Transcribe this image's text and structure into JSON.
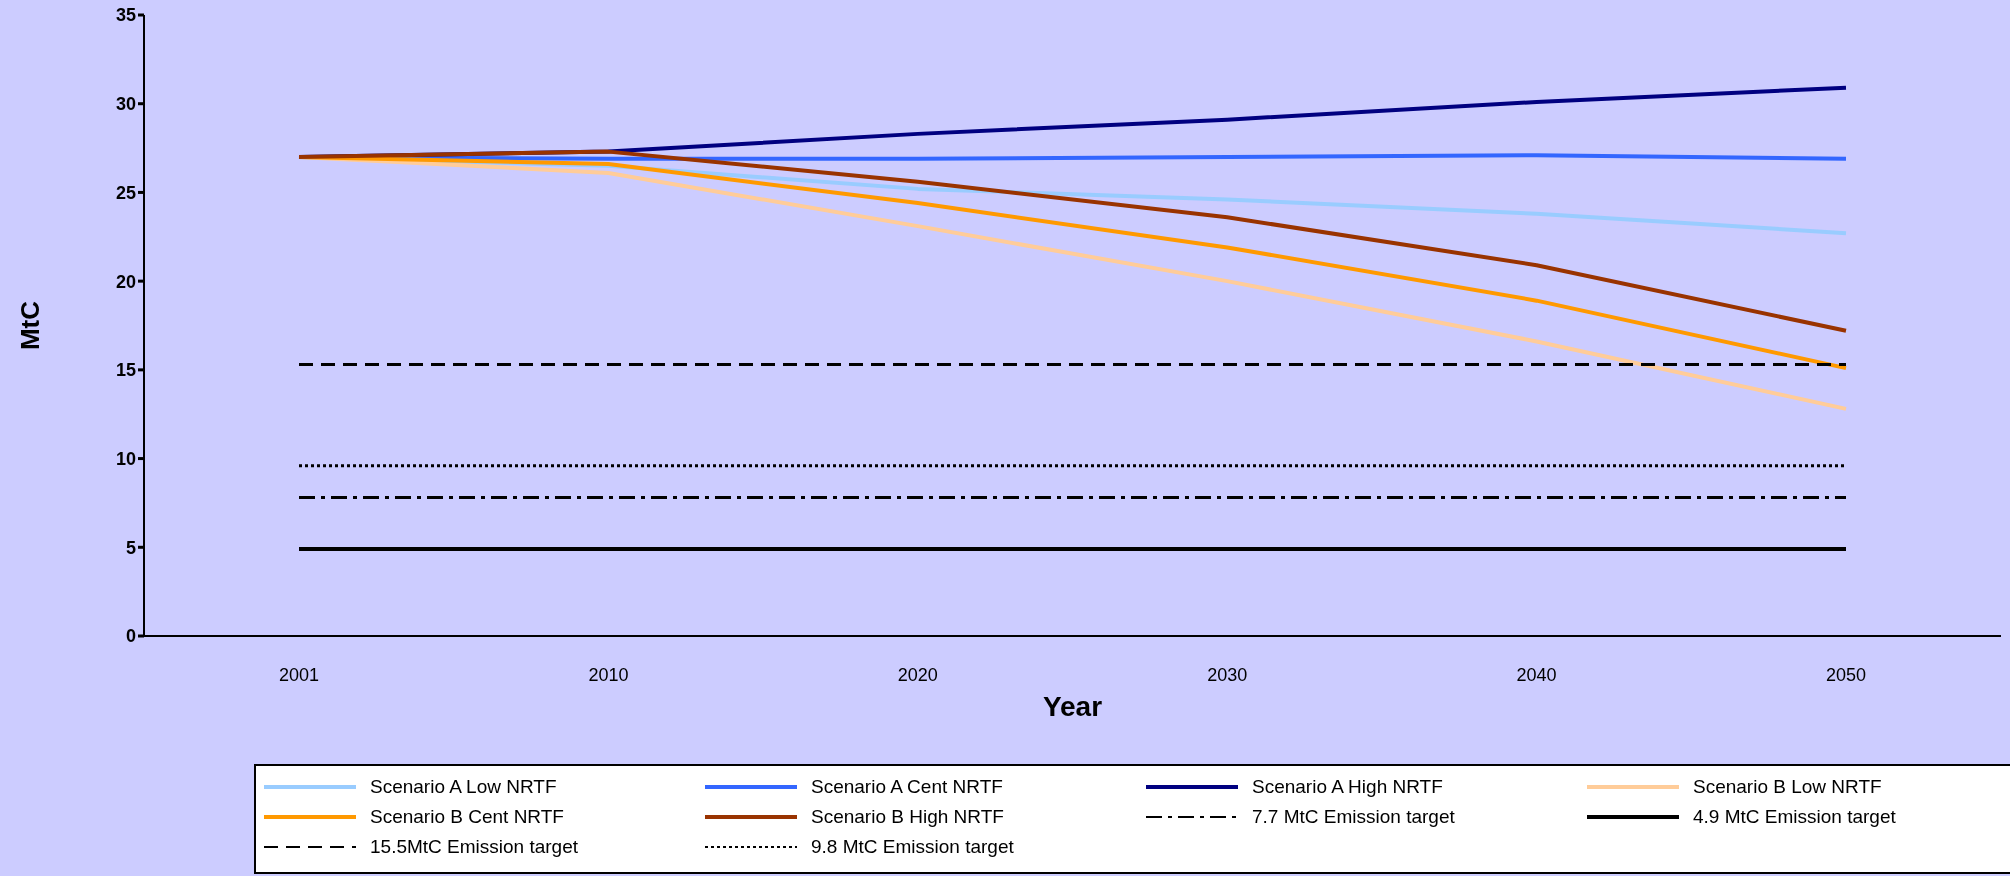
{
  "chart_data": {
    "type": "line",
    "xlabel": "Year",
    "ylabel": "MtC",
    "categories": [
      "2001",
      "2010",
      "2020",
      "2030",
      "2040",
      "2050"
    ],
    "ylim": [
      0,
      35
    ],
    "yticks": [
      0,
      5,
      10,
      15,
      20,
      25,
      30,
      35
    ],
    "grid": false,
    "legend": "bottom",
    "marker": "none",
    "series": [
      {
        "name": "Scenario A Low NRTF",
        "color": "#99ccff",
        "values": [
          27,
          26.5,
          25.2,
          24.6,
          23.8,
          22.7
        ]
      },
      {
        "name": "Scenario A Cent NRTF",
        "color": "#3366ff",
        "values": [
          27,
          26.9,
          26.9,
          27.0,
          27.1,
          26.9
        ]
      },
      {
        "name": "Scenario A High NRTF",
        "color": "#000080",
        "values": [
          27,
          27.3,
          28.3,
          29.1,
          30.1,
          30.9
        ]
      },
      {
        "name": "Scenario B Low NRTF",
        "color": "#ffcc99",
        "values": [
          27,
          26.1,
          23.1,
          20.0,
          16.6,
          12.8
        ]
      },
      {
        "name": "Scenario B Cent NRTF",
        "color": "#ff9900",
        "values": [
          27,
          26.6,
          24.4,
          21.9,
          18.9,
          15.1
        ]
      },
      {
        "name": "Scenario B High NRTF",
        "color": "#993300",
        "values": [
          27,
          27.3,
          25.6,
          23.6,
          20.9,
          17.2
        ]
      },
      {
        "name": "7.7 MtC Emission target",
        "color": "#000000",
        "line_style": "dashdot",
        "values": [
          7.8,
          7.8,
          7.8,
          7.8,
          7.8,
          7.8
        ]
      },
      {
        "name": "4.9 MtC Emission target",
        "color": "#000000",
        "line_style": "solid",
        "values": [
          4.9,
          4.9,
          4.9,
          4.9,
          4.9,
          4.9
        ]
      },
      {
        "name": "15.5MtC Emission target",
        "color": "#000000",
        "line_style": "dashed",
        "values": [
          15.3,
          15.3,
          15.3,
          15.3,
          15.3,
          15.3
        ]
      },
      {
        "name": "9.8 MtC Emission target",
        "color": "#000000",
        "line_style": "dotted",
        "values": [
          9.6,
          9.6,
          9.6,
          9.6,
          9.6,
          9.6
        ]
      }
    ]
  }
}
